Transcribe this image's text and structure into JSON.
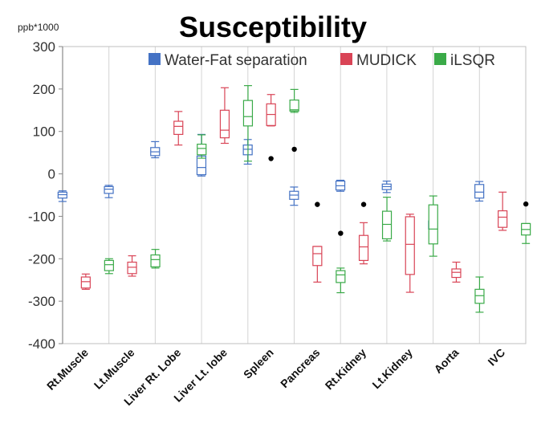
{
  "chart_data": {
    "type": "box",
    "title": "Susceptibility",
    "unit_label": "ppb*1000",
    "ylim": [
      -400,
      300
    ],
    "yticks": [
      300,
      200,
      100,
      0,
      -100,
      -200,
      -300,
      -400
    ],
    "grid": "vertical",
    "legend_position": "top-right",
    "categories": [
      "Rt.Muscle",
      "Lt.Muscle",
      "Liver Rt. Lobe",
      "Liver Lt. lobe",
      "Spleen",
      "Pancreas",
      "Rt.Kidney",
      "Lt.Kidney",
      "Aorta",
      "IVC"
    ],
    "series": [
      {
        "name": "Water-Fat separation",
        "color": "#4472c4",
        "boxes": [
          {
            "min": -65,
            "q1": -57,
            "median": -49,
            "q3": -43,
            "max": -40
          },
          {
            "min": -56,
            "q1": -46,
            "median": -36,
            "q3": -30,
            "max": -27
          },
          {
            "min": 38,
            "q1": 43,
            "median": 52,
            "q3": 62,
            "max": 76
          },
          {
            "min": -5,
            "q1": -2,
            "median": 15,
            "q3": 42,
            "max": 93
          },
          {
            "min": 23,
            "q1": 45,
            "median": 58,
            "q3": 68,
            "max": 81
          },
          {
            "min": -74,
            "q1": -60,
            "median": -50,
            "q3": -41,
            "max": -31
          },
          {
            "min": -41,
            "q1": -38,
            "median": -28,
            "q3": -17,
            "max": -15
          },
          {
            "min": -44,
            "q1": -37,
            "median": -30,
            "q3": -24,
            "max": -17
          },
          {
            "min": -140,
            "q1": -130,
            "median": -128,
            "q3": -111,
            "max": -100
          },
          {
            "min": -64,
            "q1": -57,
            "median": -43,
            "q3": -25,
            "max": -18
          }
        ],
        "outliers": [
          [],
          [],
          [],
          [],
          [],
          [],
          [],
          [],
          [],
          []
        ]
      },
      {
        "name": "MUDICK",
        "color": "#d94456",
        "boxes": [
          {
            "min": -272,
            "q1": -269,
            "median": -254,
            "q3": -243,
            "max": -236
          },
          {
            "min": -241,
            "q1": -235,
            "median": -220,
            "q3": -208,
            "max": -193
          },
          {
            "min": 68,
            "q1": 93,
            "median": 112,
            "q3": 124,
            "max": 147
          },
          {
            "min": 72,
            "q1": 85,
            "median": 103,
            "q3": 150,
            "max": 203
          },
          {
            "min": 113,
            "q1": 114,
            "median": 140,
            "q3": 165,
            "max": 187
          },
          {
            "min": -255,
            "q1": -216,
            "median": -188,
            "q3": -171,
            "max": -171
          },
          {
            "min": -212,
            "q1": -204,
            "median": -172,
            "q3": -145,
            "max": -115
          },
          {
            "min": -279,
            "q1": -237,
            "median": -166,
            "q3": -101,
            "max": -95
          },
          {
            "min": -255,
            "q1": -244,
            "median": -232,
            "q3": -224,
            "max": -208
          },
          {
            "min": -133,
            "q1": -126,
            "median": -102,
            "q3": -87,
            "max": -43
          }
        ],
        "outliers": [
          [],
          [],
          [],
          [],
          [
            36
          ],
          [
            -72
          ],
          [
            -72
          ],
          [],
          [],
          []
        ]
      },
      {
        "name": "iLSQR",
        "color": "#3aaa48",
        "boxes": [
          {
            "min": -235,
            "q1": -228,
            "median": -214,
            "q3": -204,
            "max": -200
          },
          {
            "min": -222,
            "q1": -219,
            "median": -202,
            "q3": -191,
            "max": -178
          },
          {
            "min": 37,
            "q1": 45,
            "median": 60,
            "q3": 70,
            "max": 92
          },
          {
            "min": 30,
            "q1": 113,
            "median": 135,
            "q3": 173,
            "max": 208
          },
          {
            "min": 145,
            "q1": 148,
            "median": 151,
            "q3": 174,
            "max": 199
          },
          {
            "min": -280,
            "q1": -256,
            "median": -238,
            "q3": -228,
            "max": -222
          },
          {
            "min": -158,
            "q1": -153,
            "median": -119,
            "q3": -88,
            "max": -55
          },
          {
            "min": -194,
            "q1": -165,
            "median": -130,
            "q3": -73,
            "max": -52
          },
          {
            "min": -326,
            "q1": -305,
            "median": -287,
            "q3": -272,
            "max": -243
          },
          {
            "min": -164,
            "q1": -144,
            "median": -131,
            "q3": -117,
            "max": -117
          }
        ],
        "outliers": [
          [],
          [],
          [],
          [],
          [
            58
          ],
          [
            -140
          ],
          [],
          [],
          [],
          [
            -71
          ]
        ]
      }
    ]
  }
}
